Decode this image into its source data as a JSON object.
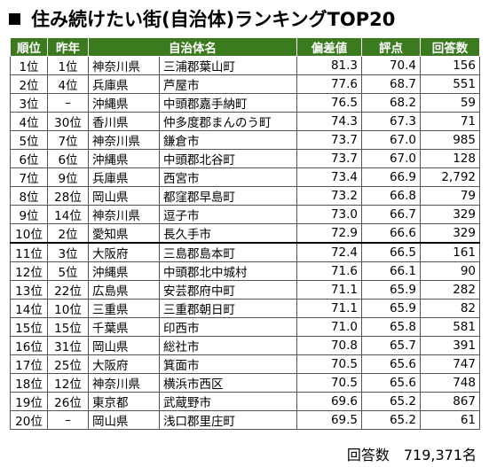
{
  "title": "住み続けたい街(自治体)ランキングTOP20",
  "headers": [
    "順位",
    "昨年",
    "自治体名",
    "偏差値",
    "評点",
    "回答数"
  ],
  "rows": [
    [
      "1位",
      "1位",
      "神奈川県",
      "三浦郡葉山町",
      "81.3",
      "70.4",
      "156"
    ],
    [
      "2位",
      "4位",
      "兵庫県",
      "芦屋市",
      "77.6",
      "68.7",
      "551"
    ],
    [
      "3位",
      "–",
      "沖縄県",
      "中頭郡嘉手納町",
      "76.5",
      "68.2",
      "59"
    ],
    [
      "4位",
      "30位",
      "香川県",
      "仲多度郡まんのう町",
      "74.3",
      "67.3",
      "71"
    ],
    [
      "5位",
      "7位",
      "神奈川県",
      "鎌倉市",
      "73.7",
      "67.0",
      "985"
    ],
    [
      "6位",
      "6位",
      "沖縄県",
      "中頭郡北谷町",
      "73.7",
      "67.0",
      "128"
    ],
    [
      "7位",
      "9位",
      "兵庫県",
      "西宮市",
      "73.4",
      "66.9",
      "2,792"
    ],
    [
      "8位",
      "28位",
      "岡山県",
      "都窪郡早島町",
      "73.2",
      "66.8",
      "79"
    ],
    [
      "9位",
      "14位",
      "神奈川県",
      "逗子市",
      "73.0",
      "66.7",
      "329"
    ],
    [
      "10位",
      "2位",
      "愛知県",
      "長久手市",
      "72.9",
      "66.6",
      "329"
    ],
    [
      "11位",
      "3位",
      "大阪府",
      "三島郡島本町",
      "72.4",
      "66.5",
      "161"
    ],
    [
      "12位",
      "5位",
      "沖縄県",
      "中頭郡北中城村",
      "71.6",
      "66.1",
      "90"
    ],
    [
      "13位",
      "22位",
      "広島県",
      "安芸郡府中町",
      "71.1",
      "65.9",
      "282"
    ],
    [
      "14位",
      "10位",
      "三重県",
      "三重郡朝日町",
      "71.1",
      "65.9",
      "82"
    ],
    [
      "15位",
      "15位",
      "千葉県",
      "印西市",
      "71.0",
      "65.8",
      "581"
    ],
    [
      "16位",
      "31位",
      "岡山県",
      "総社市",
      "70.8",
      "65.7",
      "391"
    ],
    [
      "17位",
      "25位",
      "大阪府",
      "箕面市",
      "70.5",
      "65.6",
      "747"
    ],
    [
      "18位",
      "12位",
      "神奈川県",
      "横浜市西区",
      "70.5",
      "65.6",
      "748"
    ],
    [
      "19位",
      "26位",
      "東京都",
      "武蔵野市",
      "69.6",
      "65.2",
      "867"
    ],
    [
      "20位",
      "–",
      "岡山県",
      "浅口郡里庄町",
      "69.5",
      "65.2",
      "61"
    ]
  ],
  "footer": "回答数　719,371名"
}
